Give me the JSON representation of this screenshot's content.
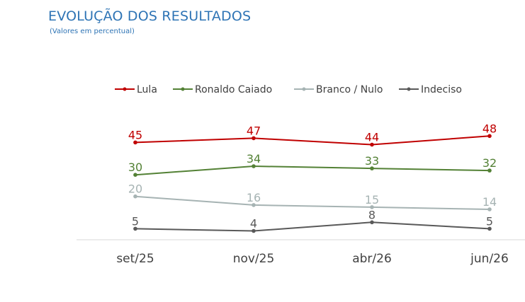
{
  "title": "EVOLUÇÃO DOS RESULTADOS",
  "subtitle": "(Valores em percentual)",
  "chart_data": {
    "type": "line",
    "categories": [
      "set/25",
      "nov/25",
      "abr/26",
      "jun/26"
    ],
    "series": [
      {
        "name": "Lula",
        "color": "#c00000",
        "values": [
          45,
          47,
          44,
          48
        ]
      },
      {
        "name": "Ronaldo Caiado",
        "color": "#538135",
        "values": [
          30,
          34,
          33,
          32
        ]
      },
      {
        "name": "Branco / Nulo",
        "color": "#a6b3b3",
        "values": [
          20,
          16,
          15,
          14
        ]
      },
      {
        "name": "Indeciso",
        "color": "#595959",
        "values": [
          5,
          4,
          8,
          5
        ]
      }
    ],
    "legend_position": "top",
    "grid": false,
    "data_labels": true,
    "ylim": [
      4,
      48
    ]
  }
}
